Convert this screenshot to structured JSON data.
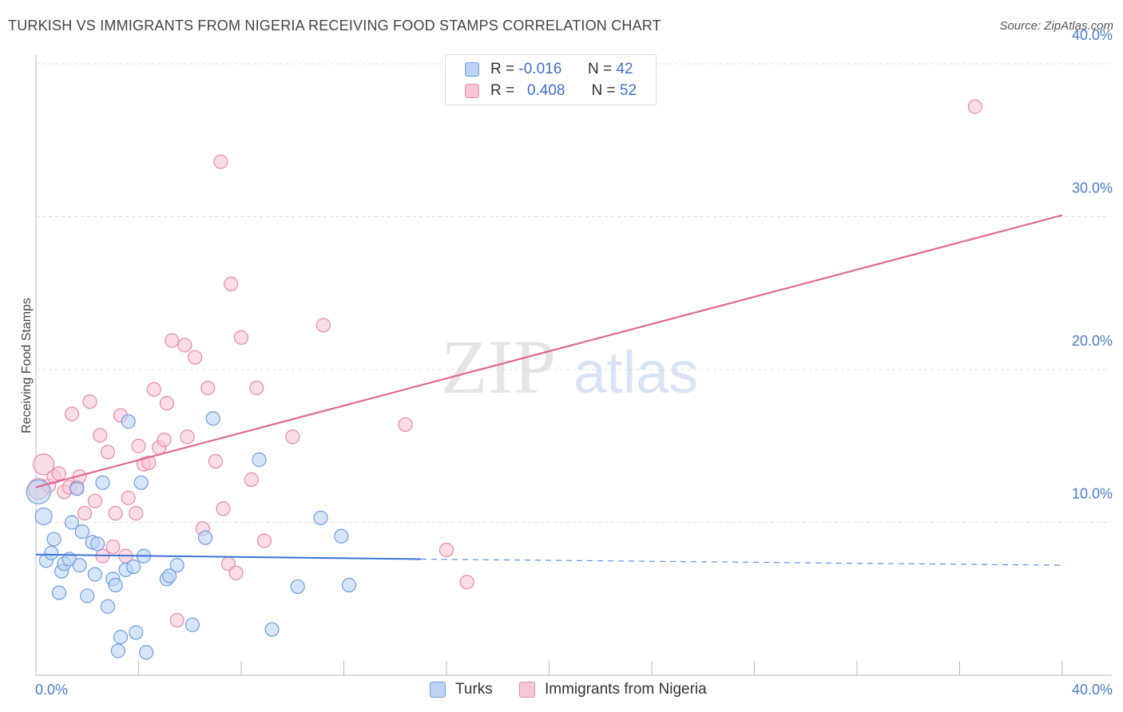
{
  "title": "TURKISH VS IMMIGRANTS FROM NIGERIA RECEIVING FOOD STAMPS CORRELATION CHART",
  "source": "Source: ZipAtlas.com",
  "watermark": {
    "part1": "ZIP",
    "part2": "atlas"
  },
  "legend": {
    "rows": [
      {
        "r_label": "R =",
        "r_value": "-0.016",
        "n_label": "N =",
        "n_value": "42"
      },
      {
        "r_label": "R =",
        "r_value": "0.408",
        "n_label": "N =",
        "n_value": "52"
      }
    ]
  },
  "bottom_legend": {
    "turks": "Turks",
    "nigeria": "Immigrants from Nigeria"
  },
  "colors": {
    "turks_fill": "#bcd3f5",
    "turks_stroke": "#6f9ee0",
    "turks_line": "#3a74d4",
    "nigeria_fill": "#f9c6d6",
    "nigeria_stroke": "#e88aa9",
    "nigeria_line": "#e06a93",
    "tick_text": "#4a7cc7"
  },
  "chart_data": {
    "type": "scatter",
    "title": "TURKISH VS IMMIGRANTS FROM NIGERIA RECEIVING FOOD STAMPS CORRELATION CHART",
    "xlabel": "",
    "ylabel": "Receiving Food Stamps",
    "xlim": [
      0,
      40
    ],
    "ylim": [
      0,
      40
    ],
    "x_tick_labels": [
      "0.0%",
      "40.0%"
    ],
    "y_tick_labels": [
      "10.0%",
      "20.0%",
      "30.0%",
      "40.0%"
    ],
    "y_ticks": [
      10,
      20,
      30,
      40
    ],
    "grid": true,
    "legend_position": "top-center",
    "series": [
      {
        "name": "Turks",
        "points": [
          [
            0.1,
            12.0
          ],
          [
            0.3,
            10.4
          ],
          [
            0.4,
            7.5
          ],
          [
            0.6,
            8.0
          ],
          [
            0.7,
            8.9
          ],
          [
            0.9,
            5.4
          ],
          [
            1.0,
            6.8
          ],
          [
            1.1,
            7.3
          ],
          [
            1.3,
            7.6
          ],
          [
            1.4,
            10.0
          ],
          [
            1.6,
            12.2
          ],
          [
            1.7,
            7.2
          ],
          [
            1.8,
            9.4
          ],
          [
            2.0,
            5.2
          ],
          [
            2.2,
            8.7
          ],
          [
            2.3,
            6.6
          ],
          [
            2.4,
            8.6
          ],
          [
            2.6,
            12.6
          ],
          [
            2.8,
            4.5
          ],
          [
            3.0,
            6.3
          ],
          [
            3.1,
            5.9
          ],
          [
            3.2,
            1.6
          ],
          [
            3.3,
            2.5
          ],
          [
            3.5,
            6.9
          ],
          [
            3.6,
            16.6
          ],
          [
            3.8,
            7.1
          ],
          [
            3.9,
            2.8
          ],
          [
            4.1,
            12.6
          ],
          [
            4.2,
            7.8
          ],
          [
            4.3,
            1.5
          ],
          [
            5.1,
            6.3
          ],
          [
            5.2,
            6.5
          ],
          [
            5.5,
            7.2
          ],
          [
            6.1,
            3.3
          ],
          [
            6.6,
            9.0
          ],
          [
            6.9,
            16.8
          ],
          [
            8.7,
            14.1
          ],
          [
            9.2,
            3.0
          ],
          [
            10.2,
            5.8
          ],
          [
            11.1,
            10.3
          ],
          [
            11.9,
            9.1
          ],
          [
            12.2,
            5.9
          ]
        ],
        "trend": {
          "x_solid": [
            0,
            15
          ],
          "y_solid": [
            7.9,
            7.6
          ],
          "x_dashed": [
            15,
            40
          ],
          "y_dashed": [
            7.6,
            7.2
          ]
        }
      },
      {
        "name": "Immigrants from Nigeria",
        "points": [
          [
            0.1,
            12.2
          ],
          [
            0.3,
            13.8
          ],
          [
            0.5,
            12.4
          ],
          [
            0.7,
            13.0
          ],
          [
            0.9,
            13.2
          ],
          [
            1.1,
            12.0
          ],
          [
            1.3,
            12.3
          ],
          [
            1.4,
            17.1
          ],
          [
            1.6,
            12.3
          ],
          [
            1.7,
            13.0
          ],
          [
            1.9,
            10.6
          ],
          [
            2.1,
            17.9
          ],
          [
            2.3,
            11.4
          ],
          [
            2.5,
            15.7
          ],
          [
            2.6,
            7.8
          ],
          [
            2.8,
            14.6
          ],
          [
            3.0,
            8.4
          ],
          [
            3.1,
            10.6
          ],
          [
            3.3,
            17.0
          ],
          [
            3.5,
            7.8
          ],
          [
            3.6,
            11.6
          ],
          [
            3.9,
            10.6
          ],
          [
            4.0,
            15.0
          ],
          [
            4.2,
            13.8
          ],
          [
            4.4,
            13.9
          ],
          [
            4.6,
            18.7
          ],
          [
            4.8,
            14.9
          ],
          [
            5.0,
            15.4
          ],
          [
            5.1,
            17.8
          ],
          [
            5.3,
            21.9
          ],
          [
            5.5,
            3.6
          ],
          [
            5.8,
            21.6
          ],
          [
            5.9,
            15.6
          ],
          [
            6.2,
            20.8
          ],
          [
            6.5,
            9.6
          ],
          [
            6.7,
            18.8
          ],
          [
            7.0,
            14.0
          ],
          [
            7.2,
            33.6
          ],
          [
            7.3,
            10.9
          ],
          [
            7.5,
            7.3
          ],
          [
            7.6,
            25.6
          ],
          [
            7.8,
            6.7
          ],
          [
            8.0,
            22.1
          ],
          [
            8.4,
            12.8
          ],
          [
            8.6,
            18.8
          ],
          [
            8.9,
            8.8
          ],
          [
            10.0,
            15.6
          ],
          [
            11.2,
            22.9
          ],
          [
            14.4,
            16.4
          ],
          [
            16.0,
            8.2
          ],
          [
            16.8,
            6.1
          ],
          [
            36.6,
            37.2
          ]
        ],
        "trend": {
          "x": [
            0,
            40
          ],
          "y": [
            12.3,
            30.1
          ]
        }
      }
    ]
  }
}
